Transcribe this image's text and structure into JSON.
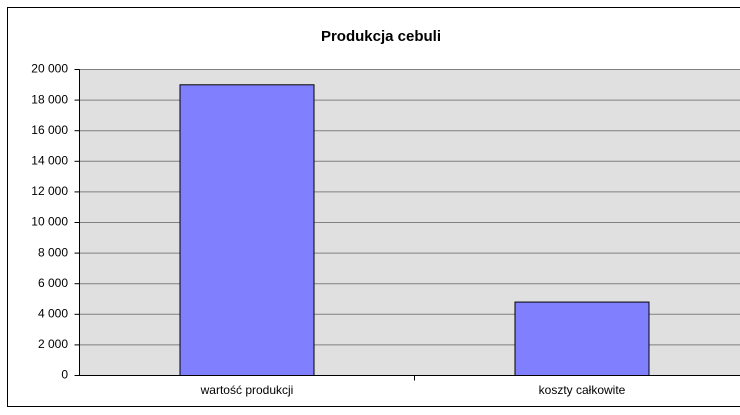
{
  "chart_data": {
    "type": "bar",
    "title": "Produkcja cebuli",
    "categories": [
      "wartość produkcji",
      "koszty całkowite"
    ],
    "values": [
      19000,
      4800
    ],
    "color": "#8080ff",
    "ylim": [
      0,
      20000
    ],
    "yticks": [
      0,
      {
        "value": 2000,
        "label": "2 000"
      },
      {
        "value": 4000,
        "label": "4 000"
      },
      {
        "value": 6000,
        "label": "6 000"
      },
      {
        "value": 8000,
        "label": "8 000"
      },
      {
        "value": 10000,
        "label": "10 000"
      },
      {
        "value": 12000,
        "label": "12 000"
      },
      {
        "value": 14000,
        "label": "14 000"
      },
      {
        "value": 16000,
        "label": "16 000"
      },
      {
        "value": 18000,
        "label": "18 000"
      },
      {
        "value": 20000,
        "label": "20 000"
      }
    ],
    "grid": true
  }
}
